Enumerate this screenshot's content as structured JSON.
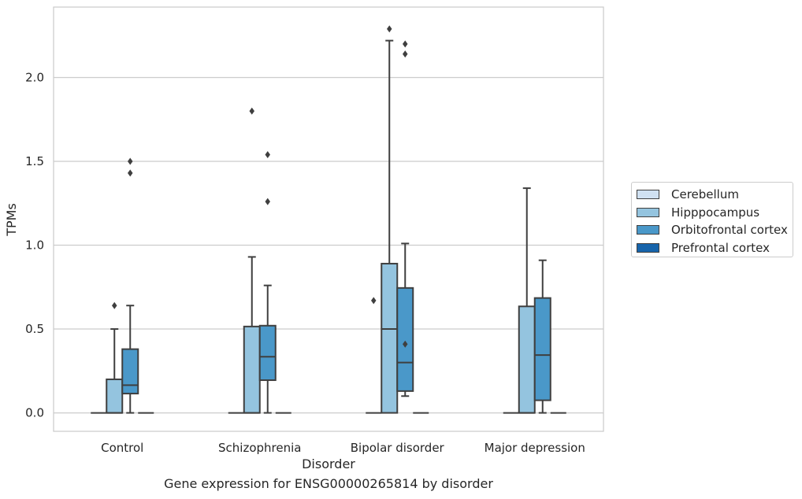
{
  "chart_data": {
    "type": "box",
    "xlabel": "Disorder",
    "ylabel": "TPMs",
    "ylim": [
      -0.11,
      2.42
    ],
    "yticks": [
      0.0,
      0.5,
      1.0,
      1.5,
      2.0
    ],
    "ytick_labels": [
      "0.0",
      "0.5",
      "1.0",
      "1.5",
      "2.0"
    ],
    "categories": [
      "Control",
      "Schizophrenia",
      "Bipolar disorder",
      "Major depression"
    ],
    "grid": "horizontal",
    "legend_position": "right",
    "series": [
      {
        "name": "Cerebellum",
        "color": "#d0e1f2",
        "boxes": [
          {
            "q1": 0,
            "median": 0,
            "q3": 0,
            "whisker_low": 0,
            "whisker_high": 0,
            "outliers": []
          },
          {
            "q1": 0,
            "median": 0,
            "q3": 0,
            "whisker_low": 0,
            "whisker_high": 0,
            "outliers": []
          },
          {
            "q1": 0,
            "median": 0,
            "q3": 0,
            "whisker_low": 0,
            "whisker_high": 0,
            "outliers": [
              0.67
            ]
          },
          {
            "q1": 0,
            "median": 0,
            "q3": 0,
            "whisker_low": 0,
            "whisker_high": 0,
            "outliers": []
          }
        ]
      },
      {
        "name": "Hipppocampus",
        "color": "#94c4df",
        "boxes": [
          {
            "q1": 0,
            "median": 0,
            "q3": 0.2,
            "whisker_low": 0,
            "whisker_high": 0.5,
            "outliers": [
              0.64
            ]
          },
          {
            "q1": 0,
            "median": 0,
            "q3": 0.515,
            "whisker_low": 0,
            "whisker_high": 0.93,
            "outliers": [
              1.8
            ]
          },
          {
            "q1": 0,
            "median": 0.5,
            "q3": 0.89,
            "whisker_low": 0,
            "whisker_high": 2.22,
            "outliers": [
              2.29
            ]
          },
          {
            "q1": 0,
            "median": 0,
            "q3": 0.635,
            "whisker_low": 0,
            "whisker_high": 1.34,
            "outliers": []
          }
        ]
      },
      {
        "name": "Orbitofrontal cortex",
        "color": "#4a98c9",
        "boxes": [
          {
            "q1": 0.115,
            "median": 0.165,
            "q3": 0.38,
            "whisker_low": 0,
            "whisker_high": 0.64,
            "outliers": [
              1.43,
              1.5
            ]
          },
          {
            "q1": 0.195,
            "median": 0.335,
            "q3": 0.52,
            "whisker_low": 0,
            "whisker_high": 0.76,
            "outliers": [
              1.26,
              1.54
            ]
          },
          {
            "q1": 0.13,
            "median": 0.3,
            "q3": 0.745,
            "whisker_low": 0.1,
            "whisker_high": 1.01,
            "outliers": [
              2.14,
              2.2,
              0.41
            ]
          },
          {
            "q1": 0.075,
            "median": 0.345,
            "q3": 0.685,
            "whisker_low": 0,
            "whisker_high": 0.91,
            "outliers": []
          }
        ]
      },
      {
        "name": "Prefrontal cortex",
        "color": "#1764ab",
        "boxes": [
          {
            "q1": 0,
            "median": 0,
            "q3": 0,
            "whisker_low": 0,
            "whisker_high": 0,
            "outliers": []
          },
          {
            "q1": 0,
            "median": 0,
            "q3": 0,
            "whisker_low": 0,
            "whisker_high": 0,
            "outliers": []
          },
          {
            "q1": 0,
            "median": 0,
            "q3": 0,
            "whisker_low": 0,
            "whisker_high": 0,
            "outliers": []
          },
          {
            "q1": 0,
            "median": 0,
            "q3": 0,
            "whisker_low": 0,
            "whisker_high": 0,
            "outliers": []
          }
        ]
      }
    ],
    "caption": "Gene expression for ENSG00000265814 by disorder"
  }
}
